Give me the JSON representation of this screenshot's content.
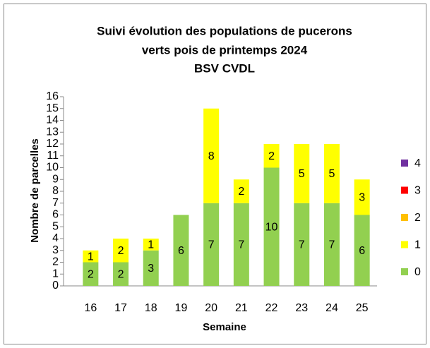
{
  "chart_data": {
    "type": "stacked_bar",
    "title": [
      "Suivi évolution des populations de pucerons",
      "verts pois de printemps 2024",
      "BSV CVDL"
    ],
    "xlabel": "Semaine",
    "ylabel": "Nombre de parcelles",
    "categories": [
      "16",
      "17",
      "18",
      "19",
      "20",
      "21",
      "22",
      "23",
      "24",
      "25"
    ],
    "series": [
      {
        "name": "0",
        "color": "#92d050",
        "values": [
          2,
          2,
          3,
          6,
          7,
          7,
          10,
          7,
          7,
          6
        ]
      },
      {
        "name": "1",
        "color": "#ffff00",
        "values": [
          1,
          2,
          1,
          0,
          8,
          2,
          2,
          5,
          5,
          3
        ]
      },
      {
        "name": "2",
        "color": "#ffc000",
        "values": [
          0,
          0,
          0,
          0,
          0,
          0,
          0,
          0,
          0,
          0
        ]
      },
      {
        "name": "3",
        "color": "#ff0000",
        "values": [
          0,
          0,
          0,
          0,
          0,
          0,
          0,
          0,
          0,
          0
        ]
      },
      {
        "name": "4",
        "color": "#7030a0",
        "values": [
          0,
          0,
          0,
          0,
          0,
          0,
          0,
          0,
          0,
          0
        ]
      }
    ],
    "ylim": [
      0,
      16
    ],
    "yticks": [
      0,
      1,
      2,
      3,
      4,
      5,
      6,
      7,
      8,
      9,
      10,
      11,
      12,
      13,
      14,
      15,
      16
    ],
    "grid": false,
    "legend": "right"
  }
}
